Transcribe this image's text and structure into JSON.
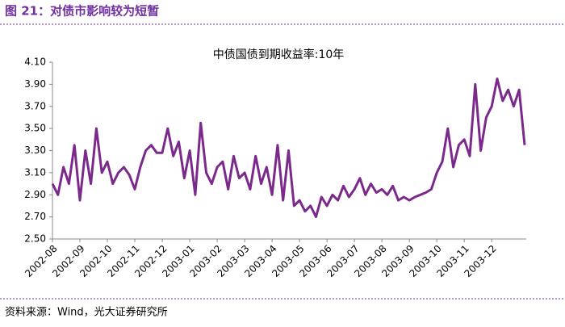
{
  "header": {
    "title": "图 21：对债市影响较为短暂"
  },
  "chart_data": {
    "type": "line",
    "title": "中债国债到期收益率:10年",
    "color": "#7b2a8c",
    "categories": [
      "2002-08",
      null,
      null,
      null,
      null,
      "2002-09",
      null,
      null,
      null,
      null,
      "2002-10",
      null,
      null,
      null,
      null,
      "2002-11",
      null,
      null,
      null,
      null,
      "2002-12",
      null,
      null,
      null,
      null,
      "2003-01",
      null,
      null,
      null,
      null,
      "2003-02",
      null,
      null,
      null,
      null,
      "2003-03",
      null,
      null,
      null,
      null,
      "2003-04",
      null,
      null,
      null,
      null,
      "2003-05",
      null,
      null,
      null,
      null,
      "2003-06",
      null,
      null,
      null,
      null,
      "2003-07",
      null,
      null,
      null,
      null,
      "2003-08",
      null,
      null,
      null,
      null,
      "2003-09",
      null,
      null,
      null,
      null,
      "2003-10",
      null,
      null,
      null,
      null,
      "2003-11",
      null,
      null,
      null,
      null,
      "2003-12",
      null,
      null,
      null,
      null,
      null,
      null
    ],
    "values": [
      3.0,
      2.9,
      3.15,
      3.0,
      3.35,
      2.85,
      3.3,
      3.0,
      3.5,
      3.1,
      3.2,
      3.0,
      3.1,
      3.15,
      3.08,
      2.95,
      3.15,
      3.3,
      3.35,
      3.28,
      3.28,
      3.5,
      3.25,
      3.38,
      3.05,
      3.3,
      2.9,
      3.55,
      3.1,
      3.0,
      3.15,
      3.2,
      2.95,
      3.25,
      3.05,
      3.1,
      2.95,
      3.25,
      3.0,
      3.15,
      2.9,
      3.35,
      2.85,
      3.3,
      2.8,
      2.85,
      2.75,
      2.8,
      2.7,
      2.88,
      2.8,
      2.9,
      2.85,
      2.98,
      2.88,
      2.95,
      3.05,
      2.9,
      3.0,
      2.92,
      2.95,
      2.9,
      2.98,
      2.85,
      2.88,
      2.85,
      2.88,
      2.9,
      2.92,
      2.95,
      3.1,
      3.2,
      3.5,
      3.15,
      3.35,
      3.4,
      3.25,
      3.9,
      3.3,
      3.6,
      3.7,
      3.95,
      3.75,
      3.85,
      3.7,
      3.85,
      3.35
    ],
    "ylim": [
      2.5,
      4.1
    ],
    "yticks": [
      {
        "value": 2.5,
        "label": "2.50"
      },
      {
        "value": 2.7,
        "label": "2.70"
      },
      {
        "value": 2.9,
        "label": "2.90"
      },
      {
        "value": 3.1,
        "label": "3.10"
      },
      {
        "value": 3.3,
        "label": "3.30"
      },
      {
        "value": 3.5,
        "label": "3.50"
      },
      {
        "value": 3.7,
        "label": "3.70"
      },
      {
        "value": 3.9,
        "label": "3.90"
      },
      {
        "value": 4.1,
        "label": "4.10"
      }
    ],
    "grid": false
  },
  "footer": {
    "source": "资料来源：Wind，光大证券研究所"
  }
}
